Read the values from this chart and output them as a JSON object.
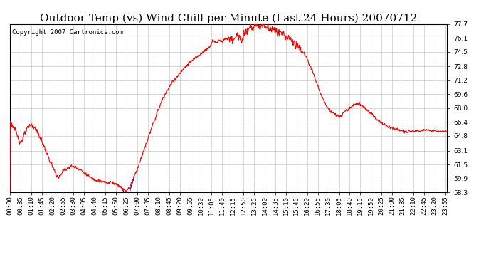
{
  "title": "Outdoor Temp (vs) Wind Chill per Minute (Last 24 Hours) 20070712",
  "copyright_text": "Copyright 2007 Cartronics.com",
  "background_color": "#ffffff",
  "plot_bg_color": "#ffffff",
  "grid_color": "#c8c8c8",
  "line_color_red": "#ff0000",
  "line_color_blue": "#0000ff",
  "yticks": [
    58.3,
    59.9,
    61.5,
    63.1,
    64.8,
    66.4,
    68.0,
    69.6,
    71.2,
    72.8,
    74.5,
    76.1,
    77.7
  ],
  "ymin": 58.3,
  "ymax": 77.7,
  "xtick_labels": [
    "00:00",
    "00:35",
    "01:10",
    "01:45",
    "02:20",
    "02:55",
    "03:30",
    "04:05",
    "04:40",
    "05:15",
    "05:50",
    "06:25",
    "07:00",
    "07:35",
    "08:10",
    "08:45",
    "09:20",
    "09:55",
    "10:30",
    "11:05",
    "11:40",
    "12:15",
    "12:50",
    "13:25",
    "14:00",
    "14:35",
    "15:10",
    "15:45",
    "16:20",
    "16:55",
    "17:30",
    "18:05",
    "18:40",
    "19:15",
    "19:50",
    "20:25",
    "21:00",
    "21:35",
    "22:10",
    "22:45",
    "23:20",
    "23:55"
  ],
  "title_fontsize": 11,
  "tick_fontsize": 6.5,
  "copyright_fontsize": 6.5,
  "figwidth": 6.9,
  "figheight": 3.75,
  "dpi": 100
}
